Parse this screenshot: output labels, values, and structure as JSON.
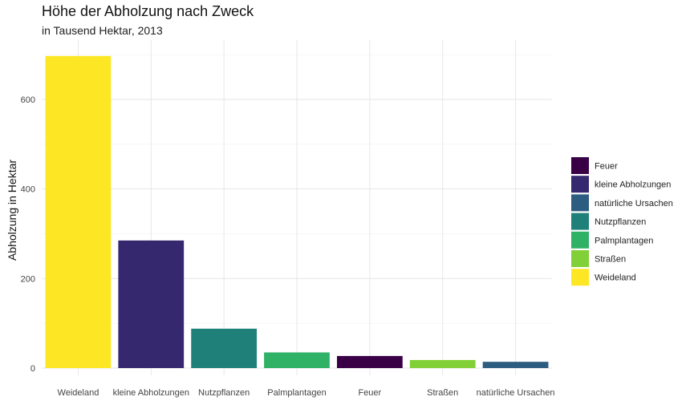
{
  "chart_data": {
    "type": "bar",
    "title": "Höhe der Abholzung nach Zweck",
    "subtitle": "in Tausend Hektar, 2013",
    "xlabel": "",
    "ylabel": "Abholzung in Hektar",
    "ylim": [
      0,
      700
    ],
    "yticks": [
      0,
      200,
      400,
      600
    ],
    "grid": true,
    "legend_position": "right",
    "categories": [
      "Weideland",
      "kleine Abholzungen",
      "Nutzpflanzen",
      "Palmplantagen",
      "Feuer",
      "Straßen",
      "natürliche Ursachen"
    ],
    "values": [
      697,
      285,
      88,
      35,
      27,
      18,
      14
    ],
    "colors": [
      "#FDE725",
      "#35286E",
      "#1F8079",
      "#2FB166",
      "#3A0046",
      "#81D037",
      "#2C5D80"
    ],
    "legend": [
      {
        "label": "Feuer",
        "color": "#3A0046"
      },
      {
        "label": "kleine Abholzungen",
        "color": "#35286E"
      },
      {
        "label": "natürliche Ursachen",
        "color": "#2C5D80"
      },
      {
        "label": "Nutzpflanzen",
        "color": "#1F8079"
      },
      {
        "label": "Palmplantagen",
        "color": "#2FB166"
      },
      {
        "label": "Straßen",
        "color": "#81D037"
      },
      {
        "label": "Weideland",
        "color": "#FDE725"
      }
    ]
  }
}
